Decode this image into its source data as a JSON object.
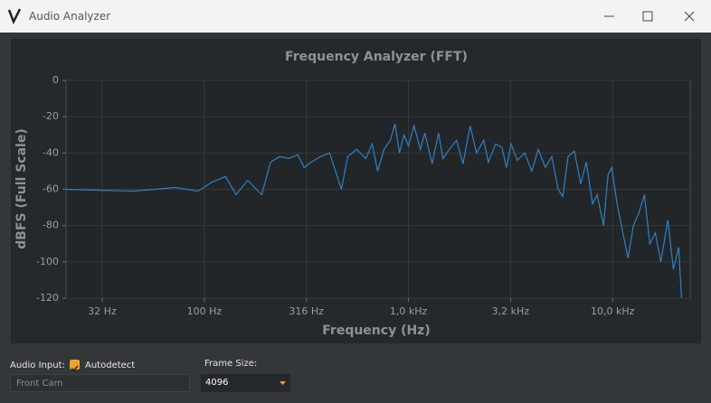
{
  "window": {
    "title": "Audio Analyzer"
  },
  "chart_data": {
    "type": "line",
    "title": "Frequency Analyzer (FFT)",
    "x_label": "Frequency (Hz)",
    "y_label": "dBFS (Full Scale)",
    "xscale": "log",
    "grid": true,
    "color": "#2f80c4",
    "xlim": [
      21,
      24000
    ],
    "ylim": [
      -120,
      0
    ],
    "xticks": [
      {
        "value": 31.6,
        "label": "32 Hz"
      },
      {
        "value": 100,
        "label": "100 Hz"
      },
      {
        "value": 316,
        "label": "316 Hz"
      },
      {
        "value": 1000,
        "label": "1,0 kHz"
      },
      {
        "value": 3162,
        "label": "3,2 kHz"
      },
      {
        "value": 10000,
        "label": "10,0 kHz"
      }
    ],
    "yticks": [
      0,
      -20,
      -40,
      -60,
      -80,
      -100,
      -120
    ],
    "x": [
      21,
      45,
      72,
      93,
      109,
      127,
      143,
      163,
      191,
      211,
      234,
      259,
      287,
      308,
      334,
      371,
      411,
      469,
      504,
      558,
      618,
      664,
      706,
      759,
      815,
      858,
      903,
      950,
      1000,
      1064,
      1143,
      1202,
      1306,
      1403,
      1476,
      1585,
      1722,
      1849,
      2006,
      2154,
      2339,
      2461,
      2673,
      2871,
      3020,
      3178,
      3413,
      3707,
      4018,
      4322,
      4688,
      5036,
      5408,
      5702,
      6053,
      6503,
      6982,
      7430,
      7980,
      8398,
      9030,
      9500,
      9900,
      10520,
      11190,
      11910,
      12650,
      13460,
      14320,
      15210,
      16180,
      17220,
      18660,
      19860,
      21090,
      21770
    ],
    "values": [
      -60,
      -61,
      -59,
      -61,
      -56,
      -53,
      -63,
      -55,
      -63,
      -45,
      -42,
      -43,
      -41,
      -48,
      -45,
      -42,
      -40,
      -60,
      -42,
      -38,
      -43,
      -35,
      -50,
      -38,
      -33,
      -24,
      -40,
      -30,
      -36,
      -25,
      -38,
      -29,
      -46,
      -29,
      -43,
      -38,
      -33,
      -46,
      -25,
      -40,
      -33,
      -45,
      -35,
      -37,
      -48,
      -35,
      -44,
      -40,
      -50,
      -38,
      -48,
      -42,
      -60,
      -64,
      -42,
      -39,
      -57,
      -45,
      -68,
      -63,
      -80,
      -52,
      -48,
      -68,
      -83,
      -98,
      -80,
      -73,
      -63,
      -90,
      -84,
      -100,
      -77,
      -104,
      -92,
      -120
    ]
  },
  "controls": {
    "audio_input_label": "Audio Input:",
    "autodetect_label": "Autodetect",
    "autodetect_checked": true,
    "input_value": "Front Cam",
    "frame_size_label": "Frame Size:",
    "frame_size_value": "4096"
  }
}
